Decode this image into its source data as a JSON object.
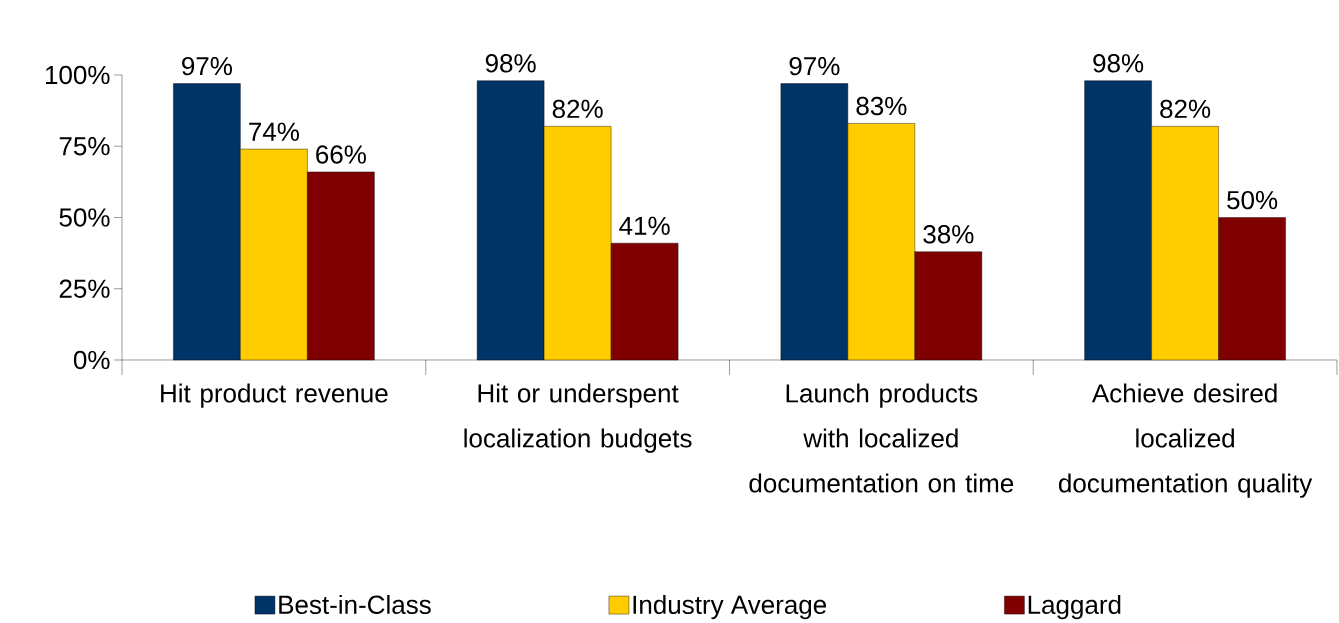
{
  "chart_data": {
    "type": "bar",
    "categories": [
      "Hit product revenue",
      "Hit or underspent localization budgets",
      "Launch products with localized documentation on time",
      "Achieve desired localized documentation quality"
    ],
    "series": [
      {
        "name": "Best-in-Class",
        "color": "#003366",
        "values": [
          97,
          98,
          97,
          98
        ],
        "value_labels": [
          "97%",
          "98%",
          "97%",
          "98%"
        ]
      },
      {
        "name": "Industry Average",
        "color": "#ffcc00",
        "values": [
          74,
          82,
          83,
          82
        ],
        "value_labels": [
          "74%",
          "82%",
          "83%",
          "82%"
        ]
      },
      {
        "name": "Laggard",
        "color": "#800000",
        "values": [
          66,
          41,
          38,
          50
        ],
        "value_labels": [
          "66%",
          "41%",
          "38%",
          "50%"
        ]
      }
    ],
    "ylim": [
      0,
      100
    ],
    "yticks": [
      {
        "value": 0,
        "label": "0%"
      },
      {
        "value": 25,
        "label": "25%"
      },
      {
        "value": 50,
        "label": "50%"
      },
      {
        "value": 75,
        "label": "75%"
      },
      {
        "value": 100,
        "label": "100%"
      }
    ],
    "legend": "bottom"
  }
}
